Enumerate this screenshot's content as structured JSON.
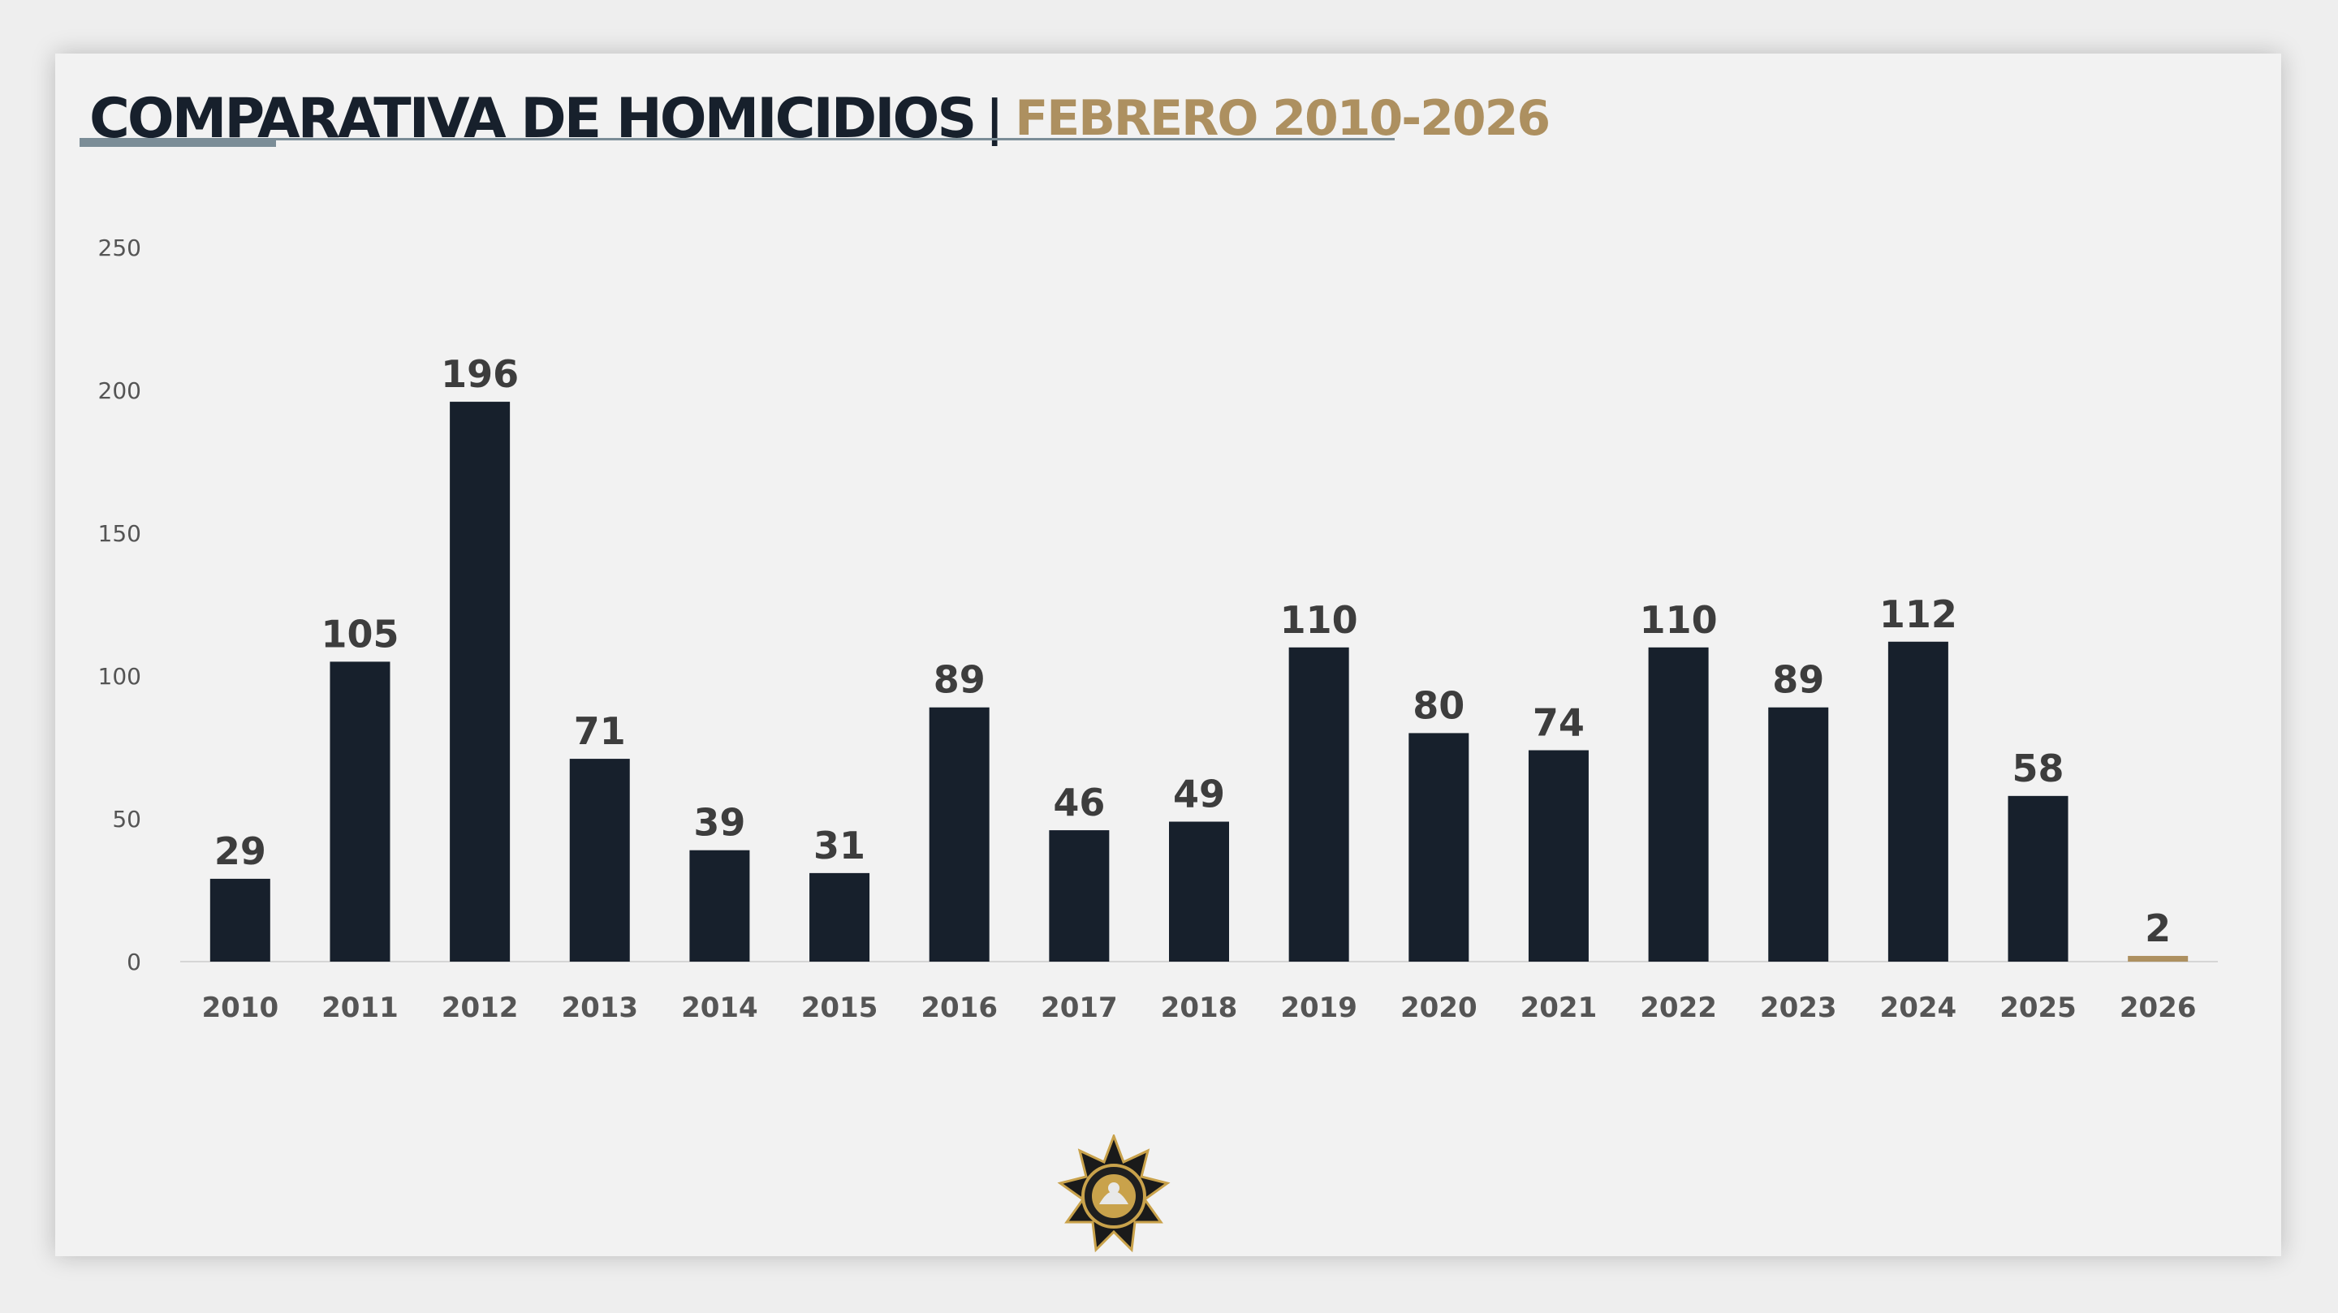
{
  "slide": {
    "title_main": "COMPARATIVA DE HOMICIDIOS",
    "title_separator": "|",
    "title_sub": "FEBRERO 2010-2026"
  },
  "colors": {
    "bar": "#17202c",
    "bar_highlight": "#ad9060",
    "title_dark": "#17202c",
    "title_accent": "#ad9060",
    "rule": "#7b8d97"
  },
  "chart_data": {
    "type": "bar",
    "categories": [
      "2010",
      "2011",
      "2012",
      "2013",
      "2014",
      "2015",
      "2016",
      "2017",
      "2018",
      "2019",
      "2020",
      "2021",
      "2022",
      "2023",
      "2024",
      "2025",
      "2026"
    ],
    "values": [
      29,
      105,
      196,
      71,
      39,
      31,
      89,
      46,
      49,
      110,
      80,
      74,
      110,
      89,
      112,
      58,
      2
    ],
    "data_labels": [
      "29",
      "105",
      "196",
      "71",
      "39",
      "31",
      "89",
      "46",
      "49",
      "110",
      "80",
      "74",
      "110",
      "89",
      "112",
      "58",
      "2"
    ],
    "highlight_category": "2026",
    "ylim": [
      0,
      250
    ],
    "yticks": [
      0,
      50,
      100,
      150,
      200,
      250
    ],
    "grid": false,
    "legend": "none"
  },
  "logo": {
    "icon": "police-seal-icon"
  }
}
